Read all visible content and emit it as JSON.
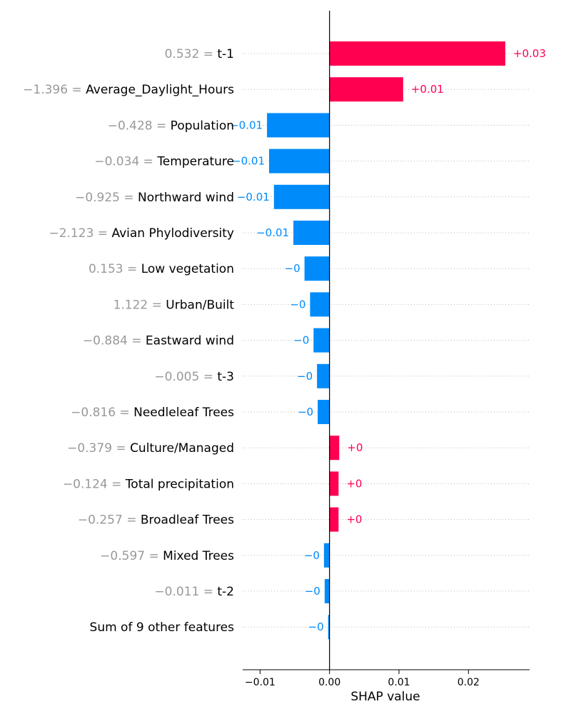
{
  "chart_data": {
    "type": "bar",
    "orientation": "horizontal",
    "xlabel": "SHAP value",
    "xlim": [
      -0.0125,
      0.0288
    ],
    "x_ticks": [
      -0.01,
      0.0,
      0.01,
      0.02
    ],
    "x_tick_labels": [
      "−0.01",
      "0.00",
      "0.01",
      "0.02"
    ],
    "grid": "dotted row guides",
    "colors": {
      "positive": "#ff0051",
      "negative": "#008bfb",
      "feature_value": "#999999"
    },
    "rows": [
      {
        "feature_value": "0.532 =",
        "feature": "t-1",
        "value": 0.0253,
        "label": "+0.03"
      },
      {
        "feature_value": "−1.396 =",
        "feature": "Average_Daylight_Hours",
        "value": 0.0106,
        "label": "+0.01"
      },
      {
        "feature_value": "−0.428 =",
        "feature": "Population",
        "value": -0.009,
        "label": "−0.01"
      },
      {
        "feature_value": "−0.034 =",
        "feature": "Temperature",
        "value": -0.0087,
        "label": "−0.01"
      },
      {
        "feature_value": "−0.925 =",
        "feature": "Northward wind",
        "value": -0.008,
        "label": "−0.01"
      },
      {
        "feature_value": "−2.123 =",
        "feature": "Avian Phylodiversity",
        "value": -0.0052,
        "label": "−0.01"
      },
      {
        "feature_value": "0.153 =",
        "feature": "Low vegetation",
        "value": -0.0036,
        "label": "−0"
      },
      {
        "feature_value": "1.122 =",
        "feature": "Urban/Built",
        "value": -0.0028,
        "label": "−0"
      },
      {
        "feature_value": "−0.884 =",
        "feature": "Eastward wind",
        "value": -0.0023,
        "label": "−0"
      },
      {
        "feature_value": "−0.005 =",
        "feature": "t-3",
        "value": -0.0018,
        "label": "−0"
      },
      {
        "feature_value": "−0.816 =",
        "feature": "Needleleaf Trees",
        "value": -0.0017,
        "label": "−0"
      },
      {
        "feature_value": "−0.379 =",
        "feature": "Culture/Managed",
        "value": 0.0014,
        "label": "+0"
      },
      {
        "feature_value": "−0.124 =",
        "feature": "Total precipitation",
        "value": 0.0013,
        "label": "+0"
      },
      {
        "feature_value": "−0.257 =",
        "feature": "Broadleaf Trees",
        "value": 0.0013,
        "label": "+0"
      },
      {
        "feature_value": "−0.597 =",
        "feature": "Mixed Trees",
        "value": -0.0008,
        "label": "−0"
      },
      {
        "feature_value": "−0.011 =",
        "feature": "t-2",
        "value": -0.0007,
        "label": "−0"
      },
      {
        "feature_value": "",
        "feature": "Sum of 9 other features",
        "value": -0.0002,
        "label": "−0"
      }
    ]
  }
}
